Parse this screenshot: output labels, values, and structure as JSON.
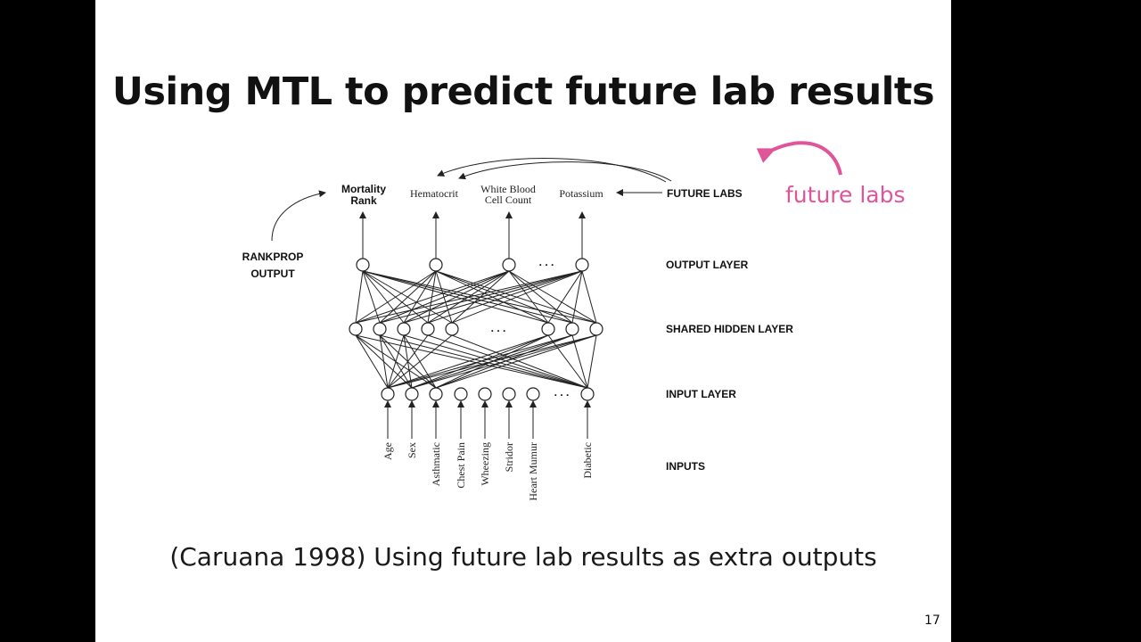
{
  "slide": {
    "title": "Using MTL to predict future lab results",
    "caption": "(Caruana 1998) Using future lab results as extra outputs",
    "page_number": "17",
    "annotation": {
      "text": "future labs",
      "color": "#e0559a"
    }
  },
  "diagram": {
    "outputs": [
      "Mortality Rank",
      "Hematocrit",
      "White Blood Cell Count",
      "Potassium"
    ],
    "output_labels": {
      "mortality_line1": "Mortality",
      "mortality_line2": "Rank",
      "hematocrit": "Hematocrit",
      "wbc_line1": "White Blood",
      "wbc_line2": "Cell Count",
      "potassium": "Potassium"
    },
    "future_labs_label": "FUTURE LABS",
    "rankprop_line1": "RANKPROP",
    "rankprop_line2": "OUTPUT",
    "layer_labels": {
      "output": "OUTPUT LAYER",
      "hidden": "SHARED HIDDEN LAYER",
      "input": "INPUT LAYER",
      "inputs": "INPUTS"
    },
    "ellipsis": ". . .",
    "inputs": [
      "Age",
      "Sex",
      "Asthmatic",
      "Chest Pain",
      "Wheezing",
      "Stridor",
      "Heart Mumur",
      "Diabetic"
    ]
  }
}
